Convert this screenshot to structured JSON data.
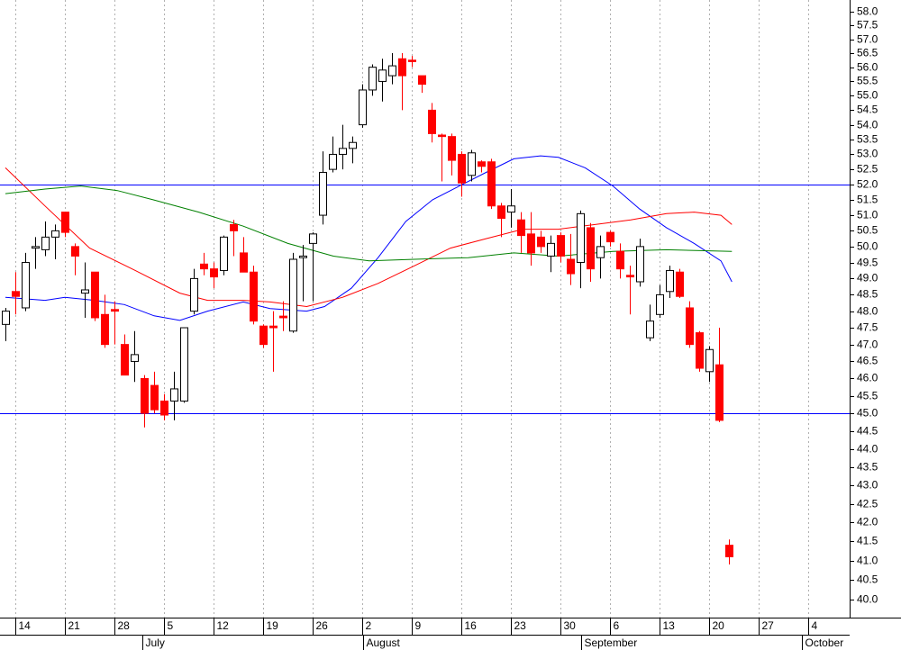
{
  "chart_data": {
    "type": "candlestick",
    "log_scale": true,
    "grid": true,
    "up_color": "#ffffff",
    "down_color": "#ff0000",
    "xlim": [
      -0.545,
      85.18
    ],
    "ylim": [
      39.55,
      58.43
    ],
    "yticks": [
      {
        "value": 40,
        "label": "40.0"
      },
      {
        "value": 40.5,
        "label": "40.5"
      },
      {
        "value": 41,
        "label": "41.0"
      },
      {
        "value": 41.5,
        "label": "41.5"
      },
      {
        "value": 42,
        "label": "42.0"
      },
      {
        "value": 42.5,
        "label": "42.5"
      },
      {
        "value": 43,
        "label": "43.0"
      },
      {
        "value": 43.5,
        "label": "43.5"
      },
      {
        "value": 44,
        "label": "44.0"
      },
      {
        "value": 44.5,
        "label": "44.5"
      },
      {
        "value": 45,
        "label": "45.0"
      },
      {
        "value": 45.5,
        "label": "45.5"
      },
      {
        "value": 46,
        "label": "46.0"
      },
      {
        "value": 46.5,
        "label": "46.5"
      },
      {
        "value": 47,
        "label": "47.0"
      },
      {
        "value": 47.5,
        "label": "47.5"
      },
      {
        "value": 48,
        "label": "48.0"
      },
      {
        "value": 48.5,
        "label": "48.5"
      },
      {
        "value": 49,
        "label": "49.0"
      },
      {
        "value": 49.5,
        "label": "49.5"
      },
      {
        "value": 50,
        "label": "50.0"
      },
      {
        "value": 50.5,
        "label": "50.5"
      },
      {
        "value": 51,
        "label": "51.0"
      },
      {
        "value": 51.5,
        "label": "51.5"
      },
      {
        "value": 52,
        "label": "52.0"
      },
      {
        "value": 52.5,
        "label": "52.5"
      },
      {
        "value": 53,
        "label": "53.0"
      },
      {
        "value": 53.5,
        "label": "53.5"
      },
      {
        "value": 54,
        "label": "54.0"
      },
      {
        "value": 54.5,
        "label": "54.5"
      },
      {
        "value": 55,
        "label": "55.0"
      },
      {
        "value": 55.5,
        "label": "55.5"
      },
      {
        "value": 56,
        "label": "56.0"
      },
      {
        "value": 56.5,
        "label": "56.5"
      },
      {
        "value": 57,
        "label": "57.0"
      },
      {
        "value": 57.5,
        "label": "57.5"
      },
      {
        "value": 58,
        "label": "58.0"
      }
    ],
    "xticks": [
      {
        "value": 1,
        "label": "14"
      },
      {
        "value": 6,
        "label": "21"
      },
      {
        "value": 11,
        "label": "28"
      },
      {
        "value": 16,
        "label": "5"
      },
      {
        "value": 21,
        "label": "12"
      },
      {
        "value": 26,
        "label": "19"
      },
      {
        "value": 31,
        "label": "26"
      },
      {
        "value": 36,
        "label": "2"
      },
      {
        "value": 41,
        "label": "9"
      },
      {
        "value": 46,
        "label": "16"
      },
      {
        "value": 51,
        "label": "23"
      },
      {
        "value": 56,
        "label": "30"
      },
      {
        "value": 61,
        "label": "6"
      },
      {
        "value": 66,
        "label": "13"
      },
      {
        "value": 71,
        "label": "20"
      },
      {
        "value": 76,
        "label": "27"
      },
      {
        "value": 81,
        "label": "4"
      }
    ],
    "month_ticks": [
      {
        "value": 13.8,
        "label": "July"
      },
      {
        "value": 36.1,
        "label": "August"
      },
      {
        "value": 58.1,
        "label": "September"
      },
      {
        "value": 80.4,
        "label": "October"
      }
    ],
    "x": [
      0,
      1,
      2,
      3,
      4,
      5,
      6,
      7,
      8,
      9,
      10,
      11,
      12,
      13,
      14,
      15,
      16,
      17,
      18,
      19,
      20,
      21,
      22,
      23,
      24,
      25,
      26,
      27,
      28,
      29,
      30,
      31,
      32,
      33,
      34,
      35,
      36,
      37,
      38,
      39,
      40,
      41,
      42,
      43,
      44,
      45,
      46,
      47,
      48,
      49,
      50,
      51,
      52,
      53,
      54,
      55,
      56,
      57,
      58,
      59,
      60,
      61,
      62,
      63,
      64,
      65,
      66,
      67,
      68,
      69,
      70,
      71,
      72,
      73
    ],
    "open": [
      47.6,
      48.6,
      48.1,
      49.95,
      49.9,
      50.3,
      51.1,
      50.0,
      48.55,
      49.2,
      47.9,
      48.05,
      47.0,
      46.5,
      46.0,
      45.8,
      45.35,
      45.35,
      45.35,
      48.0,
      49.45,
      49.3,
      49.25,
      50.7,
      49.8,
      49.2,
      47.55,
      47.55,
      47.85,
      47.4,
      49.65,
      50.1,
      51.0,
      52.5,
      53.0,
      53.2,
      54.0,
      55.2,
      55.5,
      55.7,
      56.3,
      56.25,
      55.7,
      54.5,
      53.65,
      53.6,
      53.0,
      52.3,
      52.75,
      52.75,
      51.3,
      51.1,
      50.85,
      50.4,
      50.3,
      49.7,
      50.35,
      49.6,
      49.5,
      50.6,
      49.65,
      50.45,
      49.85,
      49.1,
      48.9,
      47.2,
      47.9,
      48.6,
      49.2,
      48.1,
      47.35,
      46.2,
      46.4,
      41.4
    ],
    "high": [
      48.1,
      49.2,
      49.8,
      50.3,
      50.8,
      50.7,
      51.1,
      50.1,
      49.5,
      49.2,
      48.5,
      48.3,
      47.3,
      47.4,
      46.1,
      46.2,
      45.55,
      46.2,
      47.5,
      49.3,
      49.8,
      49.5,
      50.35,
      50.85,
      50.3,
      49.4,
      47.6,
      48.0,
      48.3,
      49.8,
      50.05,
      50.45,
      53.1,
      53.6,
      54.0,
      53.6,
      55.4,
      56.1,
      56.3,
      56.5,
      56.5,
      56.4,
      55.7,
      54.75,
      53.7,
      53.7,
      53.1,
      53.15,
      52.8,
      52.85,
      51.4,
      51.85,
      51.1,
      51.1,
      50.5,
      50.35,
      50.45,
      50.4,
      51.15,
      50.75,
      50.35,
      50.5,
      50.1,
      49.4,
      50.25,
      48.2,
      48.8,
      49.4,
      49.3,
      48.3,
      47.4,
      46.95,
      47.5,
      41.55
    ],
    "low": [
      47.1,
      47.9,
      48.0,
      49.3,
      49.7,
      49.6,
      50.3,
      49.1,
      47.8,
      47.7,
      46.9,
      47.0,
      46.1,
      45.9,
      44.6,
      45.0,
      44.8,
      44.8,
      45.3,
      47.9,
      49.1,
      48.7,
      49.1,
      49.7,
      49.2,
      47.6,
      46.9,
      46.2,
      47.4,
      47.35,
      48.3,
      48.3,
      50.7,
      52.4,
      52.5,
      52.7,
      53.9,
      55.0,
      54.8,
      55.4,
      54.5,
      56.0,
      55.1,
      53.4,
      52.1,
      52.3,
      51.6,
      52.1,
      52.4,
      51.2,
      50.3,
      50.6,
      49.8,
      49.4,
      49.8,
      49.2,
      49.5,
      48.8,
      48.7,
      48.9,
      49.0,
      50.0,
      49.0,
      47.9,
      48.75,
      47.1,
      47.8,
      48.4,
      48.4,
      46.9,
      46.2,
      45.9,
      44.75,
      40.9
    ],
    "close": [
      48.0,
      48.45,
      49.5,
      50.0,
      50.3,
      50.5,
      50.45,
      49.7,
      48.65,
      47.8,
      47.0,
      48.0,
      46.1,
      46.7,
      45.0,
      45.1,
      44.95,
      45.7,
      47.5,
      49.0,
      49.3,
      49.05,
      50.3,
      50.5,
      49.2,
      47.7,
      47.0,
      47.5,
      47.8,
      49.6,
      49.7,
      50.4,
      52.4,
      53.0,
      53.2,
      53.4,
      55.2,
      56.0,
      55.9,
      56.05,
      55.7,
      56.2,
      55.4,
      53.7,
      53.6,
      52.8,
      52.05,
      53.05,
      52.6,
      51.3,
      50.9,
      51.3,
      50.35,
      49.8,
      50.0,
      50.1,
      49.7,
      49.15,
      51.05,
      49.3,
      50.0,
      50.15,
      49.3,
      49.05,
      50.0,
      47.7,
      48.5,
      49.25,
      48.45,
      47.0,
      46.3,
      46.85,
      44.8,
      41.1
    ],
    "series": [
      {
        "color": "#0000ff",
        "x": [
          0,
          4,
          6,
          9,
          12,
          15,
          17.6,
          20.4,
          24,
          26.7,
          30.4,
          32.2,
          34.9,
          37.6,
          40.4,
          43.1,
          45.8,
          48.5,
          51.3,
          54,
          55.8,
          58.5,
          61.3,
          64,
          66.7,
          69.5,
          72.2,
          73.3
        ],
        "values": [
          48.42,
          48.33,
          48.42,
          48.33,
          48.2,
          47.86,
          47.72,
          48.0,
          48.28,
          48.08,
          48.0,
          48.14,
          48.7,
          49.65,
          50.8,
          51.5,
          51.95,
          52.4,
          52.85,
          52.95,
          52.9,
          52.55,
          51.95,
          51.2,
          50.6,
          50.1,
          49.55,
          48.9
        ]
      },
      {
        "color": "#ff0000",
        "x": [
          0,
          4,
          8.5,
          13.1,
          17.6,
          20.4,
          24,
          26.7,
          30.4,
          34,
          37.6,
          41.3,
          44.9,
          48.5,
          52.2,
          55.8,
          59.5,
          63.1,
          66.7,
          69.5,
          72.2,
          73.3
        ],
        "values": [
          52.55,
          51.3,
          49.95,
          49.25,
          48.55,
          48.33,
          48.33,
          48.28,
          48.14,
          48.42,
          48.85,
          49.4,
          49.95,
          50.25,
          50.55,
          50.55,
          50.7,
          50.85,
          51.05,
          51.1,
          51.0,
          50.7
        ]
      },
      {
        "color": "#008000",
        "x": [
          0,
          4,
          7.6,
          11.3,
          14.9,
          19.5,
          24,
          28.5,
          33.1,
          36.7,
          41.3,
          46.7,
          51.3,
          55.8,
          61.3,
          66.7,
          73.3
        ],
        "values": [
          51.7,
          51.85,
          51.95,
          51.8,
          51.5,
          51.1,
          50.65,
          50.1,
          49.7,
          49.55,
          49.6,
          49.65,
          49.8,
          49.7,
          49.85,
          49.9,
          49.85
        ]
      }
    ],
    "hlines": [
      {
        "value": 52,
        "color": "#0000ff"
      },
      {
        "value": 45,
        "color": "#0000ff"
      }
    ]
  }
}
